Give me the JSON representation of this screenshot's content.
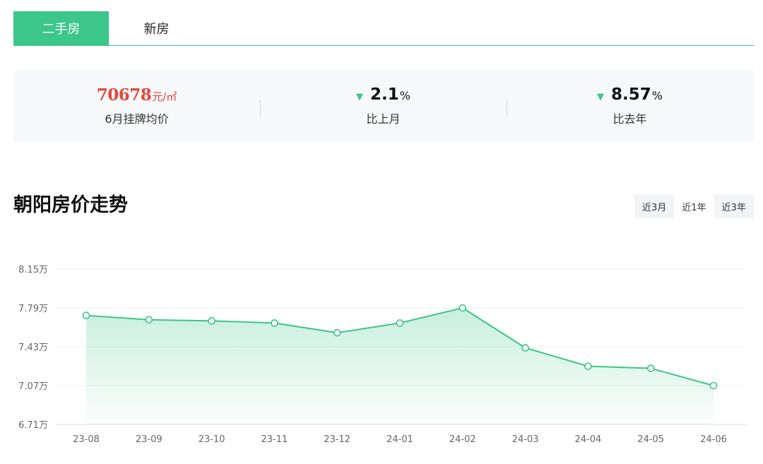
{
  "tabs": [
    {
      "label": "二手房",
      "active": true
    },
    {
      "label": "新房",
      "active": false
    }
  ],
  "stats": {
    "price": {
      "value": "70678",
      "unit": "元/㎡",
      "label": "6月挂牌均价"
    },
    "mom": {
      "value": "2.1",
      "unit": "%",
      "label": "比上月",
      "direction": "down"
    },
    "yoy": {
      "value": "8.57",
      "unit": "%",
      "label": "比去年",
      "direction": "down"
    }
  },
  "chart_title": "朝阳房价走势",
  "ranges": [
    {
      "label": "近3月",
      "selected": false
    },
    {
      "label": "近1年",
      "selected": true
    },
    {
      "label": "近3年",
      "selected": false
    }
  ],
  "colors": {
    "accent": "#3cc68a",
    "price": "#e4473a"
  },
  "chart_data": {
    "type": "area",
    "categories": [
      "23-08",
      "23-09",
      "23-10",
      "23-11",
      "23-12",
      "24-01",
      "24-02",
      "24-03",
      "24-04",
      "24-05",
      "24-06"
    ],
    "values": [
      7.72,
      7.68,
      7.67,
      7.65,
      7.56,
      7.65,
      7.79,
      7.42,
      7.25,
      7.23,
      7.07
    ],
    "value_unit": "万",
    "yticks": [
      "8.15万",
      "7.79万",
      "7.43万",
      "7.07万",
      "6.71万"
    ],
    "ytick_values": [
      8.15,
      7.79,
      7.43,
      7.07,
      6.71
    ],
    "ylim": [
      6.71,
      8.15
    ],
    "grid": true,
    "marker": "hollow-circle",
    "title": "",
    "xlabel": "",
    "ylabel": ""
  }
}
